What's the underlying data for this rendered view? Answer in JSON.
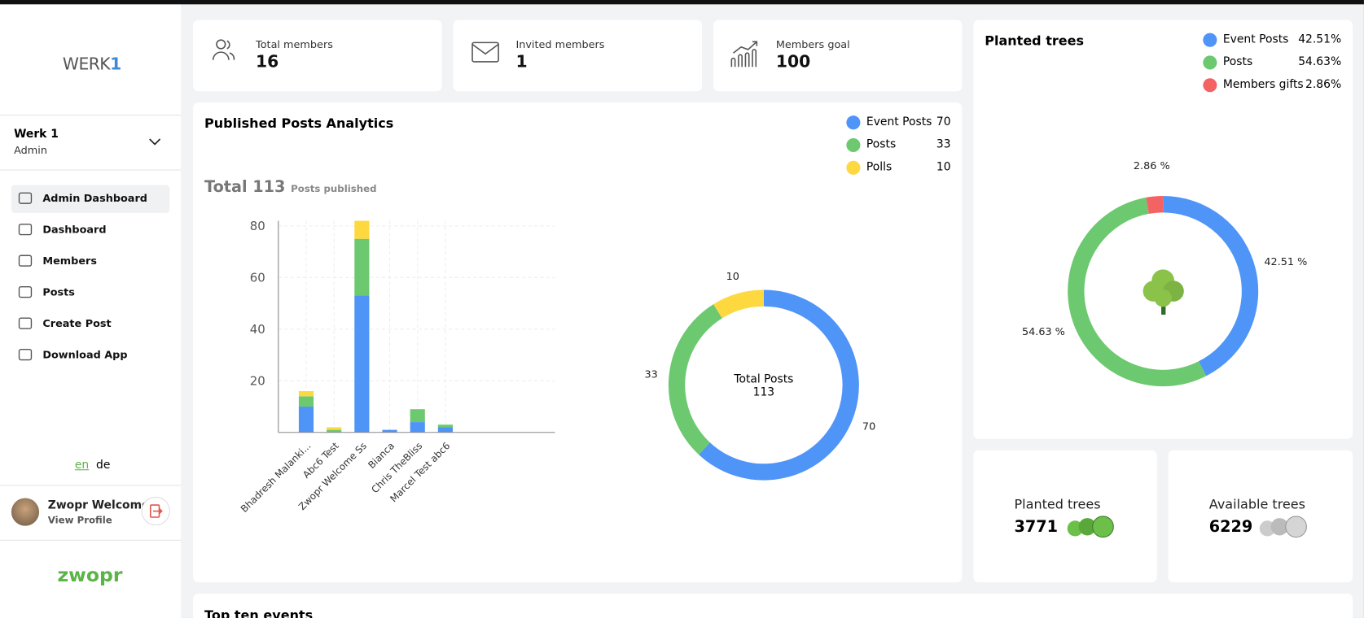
{
  "sidebar": {
    "logo": {
      "word": "WERK",
      "digit": "1"
    },
    "workspace": {
      "name": "Werk 1",
      "role": "Admin"
    },
    "nav": [
      "Admin Dashboard",
      "Dashboard",
      "Members",
      "Posts",
      "Create Post",
      "Download App"
    ],
    "languages": [
      "en",
      "de"
    ],
    "profile": {
      "name": "Zwopr Welcome",
      "link": "View Profile"
    },
    "brand": "zwopr"
  },
  "stats": [
    {
      "label": "Total members",
      "value": 16
    },
    {
      "label": "Invited members",
      "value": 1
    },
    {
      "label": "Members goal",
      "value": 100
    }
  ],
  "posts_analytics": {
    "title": "Published Posts Analytics",
    "total": {
      "label": "Total",
      "value": 113,
      "caption": "Posts published"
    },
    "bar_chart": {
      "type": "bar",
      "stacked": true,
      "categories": [
        "Bhadresh Malanki...",
        "Abc6 Test",
        "Zwopr Welcome Ss",
        "Bianca",
        "Chris TheBliss",
        "Marcel Test abc6"
      ],
      "series": [
        {
          "name": "Event Posts",
          "color": "#4f94f7",
          "total": 70,
          "values": [
            10,
            0,
            53,
            1,
            4,
            2
          ]
        },
        {
          "name": "Posts",
          "color": "#6cc970",
          "total": 33,
          "values": [
            4,
            1,
            22,
            0,
            5,
            1
          ]
        },
        {
          "name": "Polls",
          "color": "#fdd83f",
          "total": 10,
          "values": [
            2,
            1,
            7,
            0,
            0,
            0
          ]
        }
      ],
      "ylim": [
        0,
        82
      ],
      "yticks": [
        20,
        40,
        60,
        80
      ],
      "grid": true
    },
    "donut": {
      "type": "donut",
      "center_label": "Total Posts"
    }
  },
  "planted_trees": {
    "title": "Planted trees",
    "type": "donut",
    "names": [
      "Event Posts",
      "Posts",
      "Members gifts"
    ],
    "colors": [
      "#4f94f7",
      "#6cc970",
      "#f46363"
    ],
    "values": [
      42.51,
      54.63,
      2.86
    ],
    "value_labels": [
      "42.51%",
      "54.63%",
      "2.86%"
    ],
    "chart_labels": [
      "42.51 %",
      "54.63 %",
      "2.86 %"
    ]
  },
  "tree_cards": [
    {
      "label": "Planted trees",
      "value": 3771
    },
    {
      "label": "Available trees",
      "value": 6229
    }
  ],
  "next_section": {
    "title": "Top ten events"
  }
}
